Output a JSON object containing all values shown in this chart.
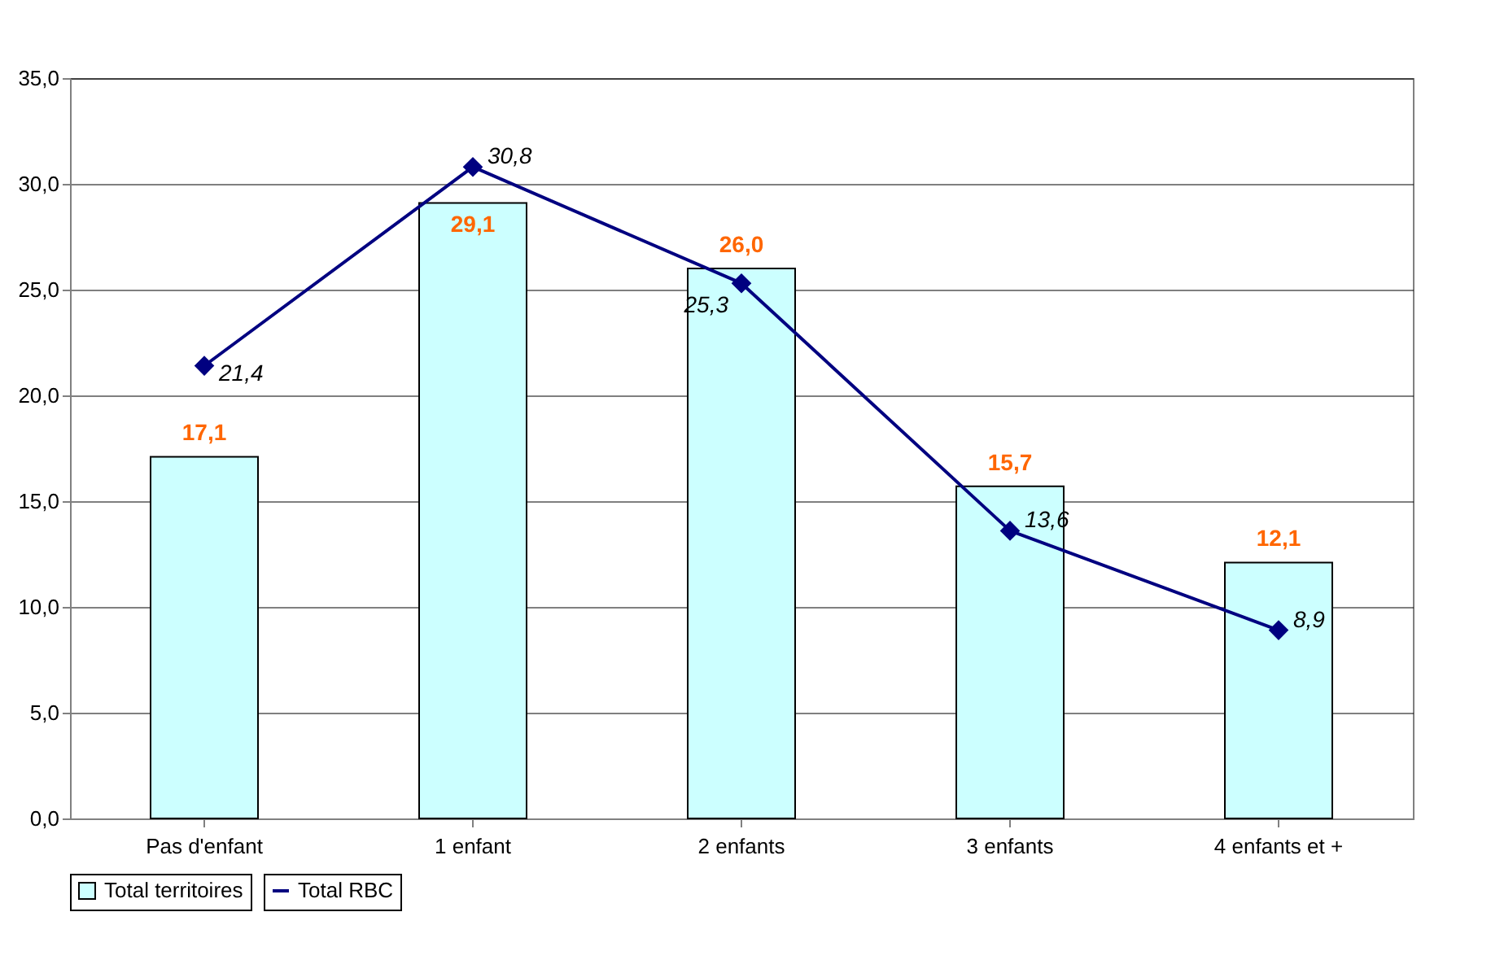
{
  "chart_data": {
    "type": "bar",
    "categories": [
      "Pas d'enfant",
      "1 enfant",
      "2 enfants",
      "3 enfants",
      "4 enfants et +"
    ],
    "series": [
      {
        "name": "Total territoires",
        "color": "#ccffff",
        "values": [
          17.1,
          29.1,
          26.0,
          15.7,
          12.1
        ],
        "value_labels": [
          "17,1",
          "29,1",
          "26,0",
          "15,7",
          "12,1"
        ]
      },
      {
        "name": "Total RBC",
        "type": "line",
        "color": "#000080",
        "values": [
          21.4,
          30.8,
          25.3,
          13.6,
          8.9
        ],
        "value_labels": [
          "21,4",
          "30,8",
          "25,3",
          "13,6",
          "8,9"
        ]
      }
    ],
    "ylim": [
      0,
      35
    ],
    "yticks": [
      {
        "value": 0,
        "label": "0,0"
      },
      {
        "value": 5,
        "label": "5,0"
      },
      {
        "value": 10,
        "label": "10,0"
      },
      {
        "value": 15,
        "label": "15,0"
      },
      {
        "value": 20,
        "label": "20,0"
      },
      {
        "value": 25,
        "label": "25,0"
      },
      {
        "value": 30,
        "label": "30,0"
      },
      {
        "value": 35,
        "label": "35,0"
      }
    ],
    "grid": "y",
    "legend": "bottom",
    "marker": "diamond",
    "line_style": "solid"
  }
}
